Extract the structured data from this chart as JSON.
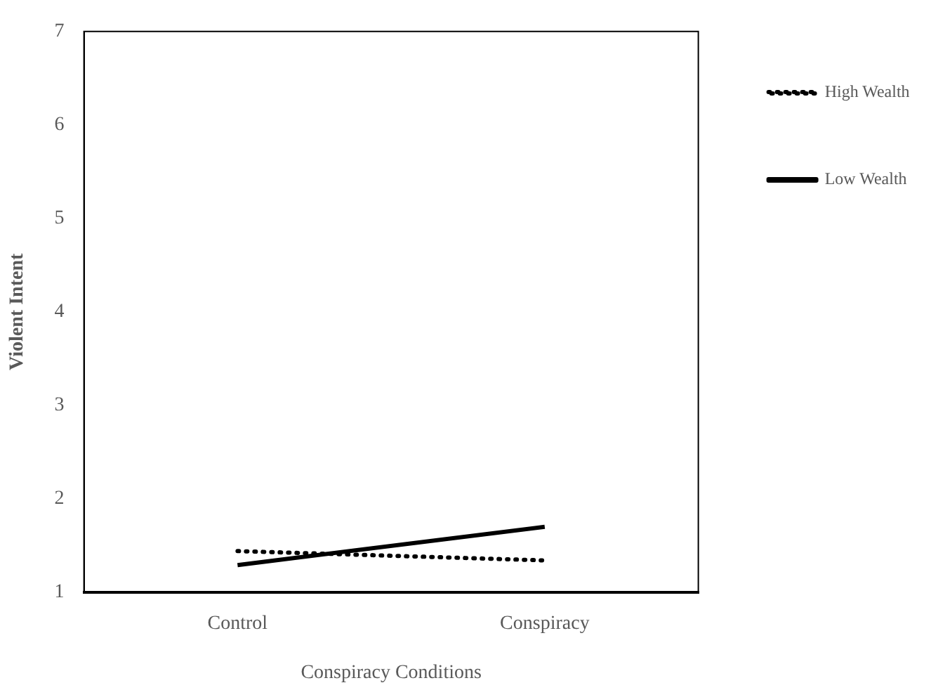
{
  "chart_data": {
    "type": "line",
    "xlabel": "Conspiracy Conditions",
    "ylabel": "Violent Intent",
    "categories": [
      "Control",
      "Conspiracy"
    ],
    "series": [
      {
        "name": "High Wealth",
        "color": "#000000",
        "values": [
          1.44,
          1.34
        ],
        "line_style": "dotted"
      },
      {
        "name": "Low Wealth",
        "color": "#000000",
        "values": [
          1.29,
          1.7
        ],
        "line_style": "solid"
      }
    ],
    "ylim": [
      1,
      7
    ],
    "yticks": [
      1,
      2,
      3,
      4,
      5,
      6,
      7
    ],
    "grid": false,
    "legend": "right",
    "marker": "none"
  }
}
